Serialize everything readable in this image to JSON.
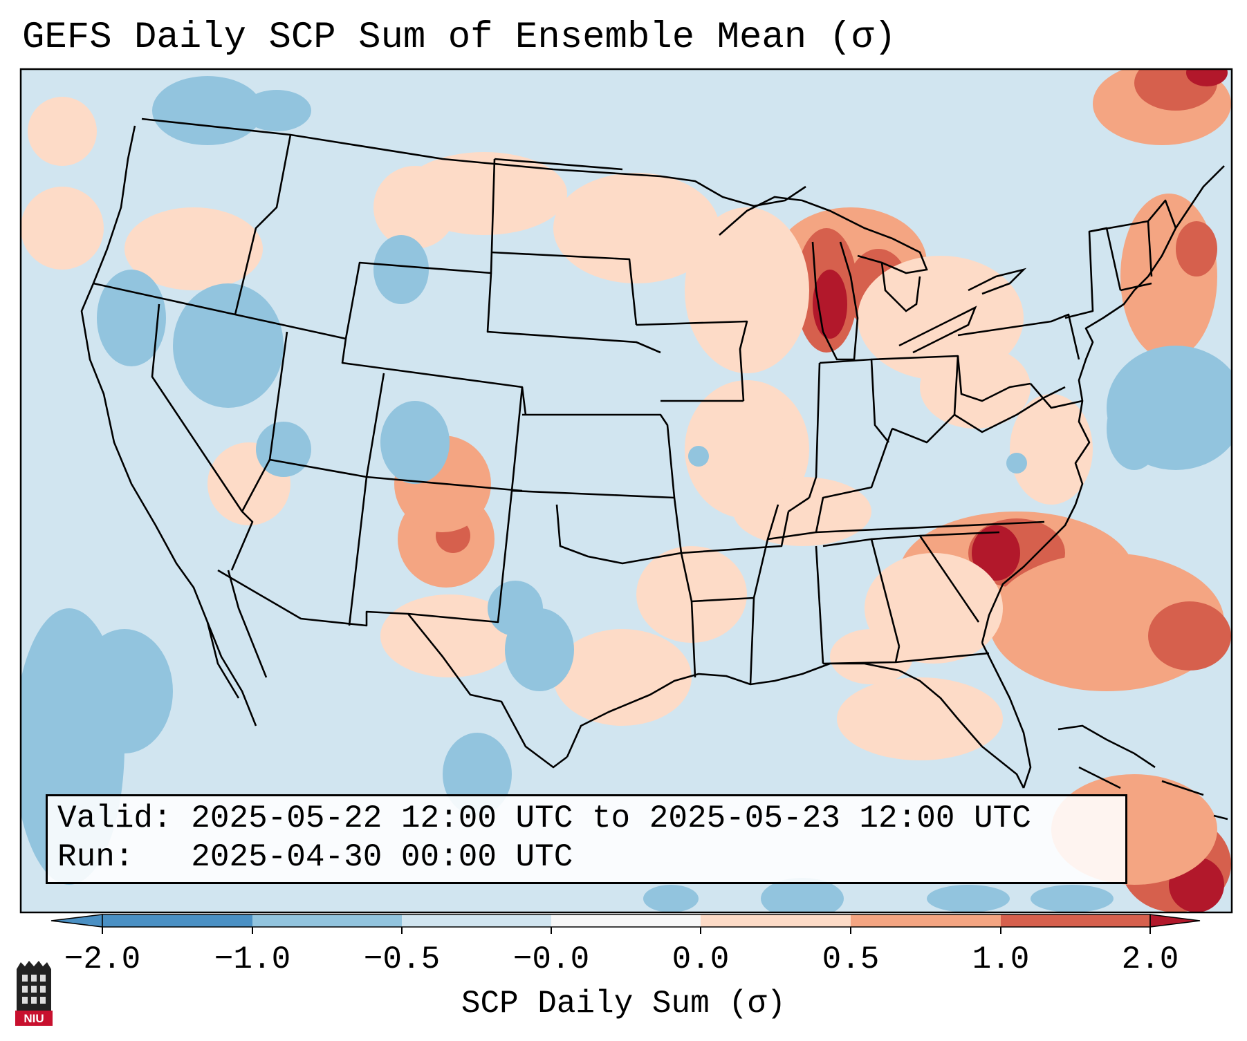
{
  "title": "GEFS Daily SCP Sum of Ensemble Mean (σ)",
  "info": {
    "valid_label": "Valid:",
    "valid_value": "2025-05-22 12:00 UTC to 2025-05-23 12:00 UTC",
    "run_label": "Run:",
    "run_value": "2025-04-30 00:00 UTC"
  },
  "colorbar": {
    "label": "SCP Daily Sum (σ)",
    "ticks": [
      "−2.0",
      "−1.0",
      "−0.5",
      "−0.0",
      "0.0",
      "0.5",
      "1.0",
      "2.0"
    ],
    "colors": [
      "#4a90c4",
      "#92c4de",
      "#d1e5f0",
      "#f7f7f7",
      "#fddbc7",
      "#f4a582",
      "#d6604d",
      "#b2182b"
    ]
  },
  "map": {
    "background_class_color": "#d1e5f0",
    "positive_anomalies": [
      "Lower Michigan / Lake Michigan",
      "Georgia / Southeast Atlantic",
      "New Mexico",
      "Ohio / Lake Erie",
      "Gulf of St. Lawrence"
    ],
    "negative_anomalies": [
      "Pacific Northwest",
      "Nevada / Great Basin",
      "Eastern Pacific",
      "Western Atlantic",
      "Central Texas"
    ]
  },
  "logo": {
    "text": "NIU"
  }
}
